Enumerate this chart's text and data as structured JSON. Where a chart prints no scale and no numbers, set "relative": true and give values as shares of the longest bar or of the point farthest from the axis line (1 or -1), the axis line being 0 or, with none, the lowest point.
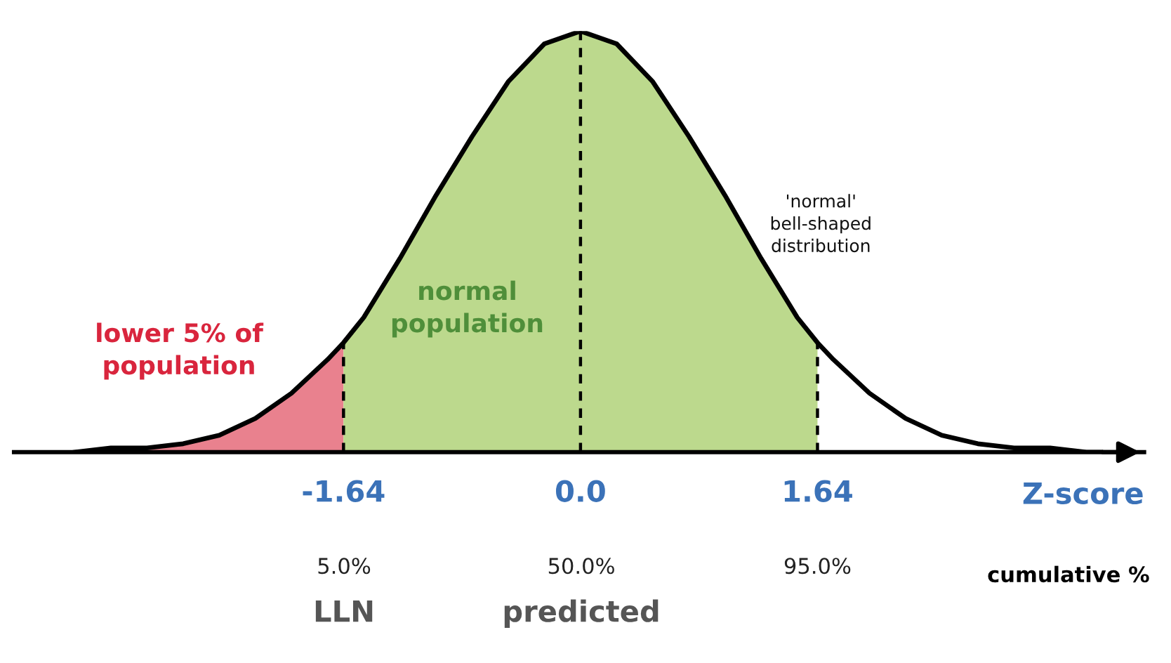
{
  "chart_data": {
    "type": "area",
    "relative": true,
    "xlim": [
      -3.92,
      3.9
    ],
    "xticks": [
      {
        "value": -1.64,
        "label": "-1.64"
      },
      {
        "value": 0,
        "label": "0.0"
      },
      {
        "value": 1.64,
        "label": "1.64"
      }
    ],
    "xlabel": "Z-score",
    "series": [
      {
        "color": "#e9818e",
        "x": [
          -3.5,
          -3.25,
          -3,
          -2.75,
          -2.5,
          -2.25,
          -2,
          -1.75,
          -1.64
        ],
        "values": [
          0.0,
          0.01,
          0.01,
          0.02,
          0.04,
          0.08,
          0.14,
          0.22,
          0.26
        ]
      },
      {
        "color": "#bcd98d",
        "x": [
          -1.64,
          -1.5,
          -1.25,
          -1,
          -0.75,
          -0.5,
          -0.25,
          0,
          0.25,
          0.5,
          0.75,
          1,
          1.25,
          1.5,
          1.64
        ],
        "values": [
          0.26,
          0.32,
          0.46,
          0.61,
          0.75,
          0.88,
          0.97,
          1,
          0.97,
          0.88,
          0.75,
          0.61,
          0.46,
          0.32,
          0.26
        ]
      },
      {
        "type": "line",
        "color": "#000000",
        "x": [
          -3.5,
          -3.25,
          -3,
          -2.75,
          -2.5,
          -2.25,
          -2,
          -1.75,
          -1.64,
          -1.5,
          -1.25,
          -1,
          -0.75,
          -0.5,
          -0.25,
          0,
          0.25,
          0.5,
          0.75,
          1,
          1.25,
          1.5,
          1.64,
          1.75,
          2,
          2.25,
          2.5,
          2.75,
          3,
          3.25,
          3.5,
          3.6
        ],
        "values": [
          0.0,
          0.01,
          0.01,
          0.02,
          0.04,
          0.08,
          0.14,
          0.22,
          0.26,
          0.32,
          0.46,
          0.61,
          0.75,
          0.88,
          0.97,
          1,
          0.97,
          0.88,
          0.75,
          0.61,
          0.46,
          0.32,
          0.26,
          0.22,
          0.14,
          0.08,
          0.04,
          0.02,
          0.01,
          0.01,
          0.0,
          0.0
        ]
      }
    ],
    "ref_lines": [
      {
        "axis": "x",
        "value": -1.64,
        "line_style": "dashed",
        "color": "#000000"
      },
      {
        "axis": "x",
        "value": 0,
        "line_style": "dashed",
        "color": "#000000"
      },
      {
        "axis": "x",
        "value": 1.64,
        "line_style": "dashed",
        "color": "#000000"
      }
    ],
    "annotations": [
      "lower 5% of\npopulation",
      "normal\npopulation",
      "'normal'\nbell-shaped\ndistribution",
      "5.0%",
      "LLN",
      "50.0%",
      "predicted",
      "95.0%",
      "cumulative %"
    ]
  }
}
